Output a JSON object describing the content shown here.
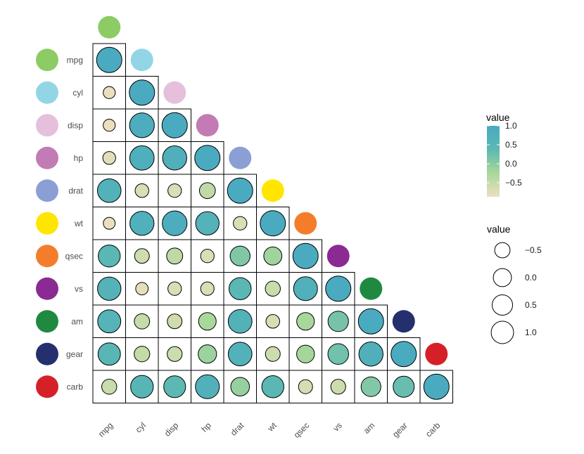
{
  "chart_data": {
    "type": "heatmap",
    "variables": [
      "mpg",
      "cyl",
      "disp",
      "hp",
      "drat",
      "wt",
      "qsec",
      "vs",
      "am",
      "gear",
      "carb"
    ],
    "variable_colors": [
      "#8dcb65",
      "#92d6e6",
      "#e6bfdc",
      "#c27bb4",
      "#8b9fd4",
      "#ffe500",
      "#f47d2c",
      "#8a2a92",
      "#1f8a3f",
      "#262f6e",
      "#d62027"
    ],
    "values": [
      [
        1.0
      ],
      [
        -0.85,
        1.0
      ],
      [
        -0.85,
        0.9,
        1.0
      ],
      [
        -0.78,
        0.83,
        0.79,
        1.0
      ],
      [
        0.68,
        -0.7,
        -0.71,
        -0.45,
        1.0
      ],
      [
        -0.87,
        0.78,
        0.89,
        0.66,
        -0.71,
        1.0
      ],
      [
        0.42,
        -0.59,
        -0.43,
        -0.71,
        0.09,
        -0.17,
        1.0
      ],
      [
        0.66,
        -0.81,
        -0.71,
        -0.72,
        0.44,
        -0.55,
        0.74,
        1.0
      ],
      [
        0.6,
        -0.52,
        -0.59,
        -0.24,
        0.71,
        -0.69,
        -0.23,
        0.17,
        1.0
      ],
      [
        0.48,
        -0.49,
        -0.56,
        -0.13,
        0.7,
        -0.58,
        -0.21,
        0.21,
        0.79,
        1.0
      ],
      [
        -0.55,
        0.53,
        0.39,
        0.75,
        -0.09,
        0.43,
        -0.66,
        -0.57,
        0.06,
        0.27,
        1.0
      ]
    ],
    "color_legend": {
      "title": "value",
      "ticks": [
        "1.0",
        "0.5",
        "0.0",
        "−0.5"
      ],
      "tick_values": [
        1.0,
        0.5,
        0.0,
        -0.5
      ],
      "colors": [
        "#ecdfbf",
        "#a9d89a",
        "#5cb8b2",
        "#4aabc0"
      ]
    },
    "size_legend": {
      "title": "value",
      "ticks": [
        "−0.5",
        "0.0",
        "0.5",
        "1.0"
      ],
      "tick_values": [
        -0.5,
        0.0,
        0.5,
        1.0
      ]
    },
    "range": [
      -0.87,
      1.0
    ]
  }
}
